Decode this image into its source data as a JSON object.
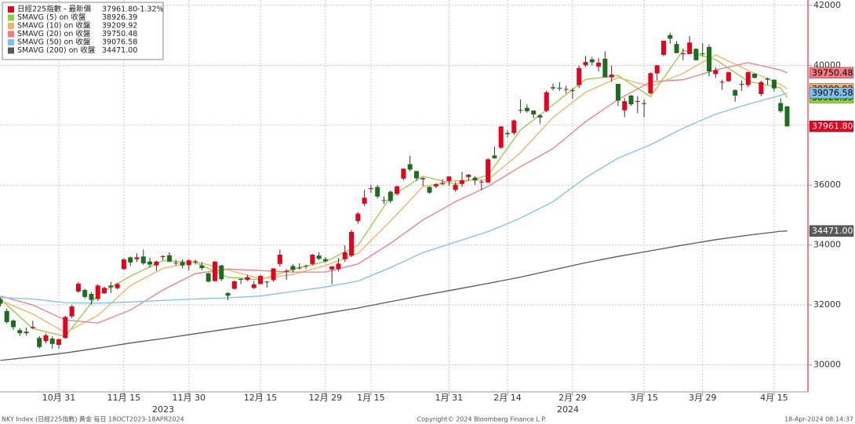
{
  "chart_data": {
    "type": "candlestick",
    "ylim": [
      29100,
      42180
    ],
    "yticks": [
      30000,
      32000,
      34000,
      36000,
      38000,
      40000,
      42000
    ],
    "xticks": [
      {
        "value": "2023-10-31",
        "label": "10月 31"
      },
      {
        "value": "2023-11-15",
        "label": "11月 15"
      },
      {
        "value": "2023-11-30",
        "label": "11月 30"
      },
      {
        "value": "2023-12-15",
        "label": "12月 15"
      },
      {
        "value": "2023-12-29",
        "label": "12月 29"
      },
      {
        "value": "2024-01-15",
        "label": "1月 15"
      },
      {
        "value": "2024-01-31",
        "label": "1月 31"
      },
      {
        "value": "2024-02-14",
        "label": "2月 14"
      },
      {
        "value": "2024-02-29",
        "label": "2月 29"
      },
      {
        "value": "2024-03-15",
        "label": "3月 15"
      },
      {
        "value": "2024-03-29",
        "label": "3月 29"
      },
      {
        "value": "2024-04-15",
        "label": "4月 15"
      }
    ],
    "years": [
      "2023",
      "2024"
    ],
    "grid": true,
    "footer_left": "NKY Index (日經225指數) 黃金  每日 18OCT2023-18APR2024",
    "footer_center": "Copyright© 2024 Bloomberg Finance L.P.",
    "footer_right": "18-Apr-2024 08:14:37",
    "candles": {
      "name": "日經225指數 - 最新價",
      "label": "37961.80",
      "change": "-1.32%",
      "color": "#e8001c",
      "up_color": "#e8001c",
      "down_color": "#1b6e1b",
      "x": [
        "2023-10-18",
        "2023-10-19",
        "2023-10-20",
        "2023-10-23",
        "2023-10-24",
        "2023-10-25",
        "2023-10-26",
        "2023-10-27",
        "2023-10-30",
        "2023-10-31",
        "2023-11-01",
        "2023-11-02",
        "2023-11-06",
        "2023-11-07",
        "2023-11-08",
        "2023-11-09",
        "2023-11-10",
        "2023-11-13",
        "2023-11-14",
        "2023-11-15",
        "2023-11-16",
        "2023-11-17",
        "2023-11-20",
        "2023-11-21",
        "2023-11-22",
        "2023-11-24",
        "2023-11-27",
        "2023-11-28",
        "2023-11-29",
        "2023-11-30",
        "2023-12-01",
        "2023-12-04",
        "2023-12-05",
        "2023-12-06",
        "2023-12-07",
        "2023-12-08",
        "2023-12-11",
        "2023-12-12",
        "2023-12-13",
        "2023-12-14",
        "2023-12-15",
        "2023-12-18",
        "2023-12-19",
        "2023-12-20",
        "2023-12-21",
        "2023-12-22",
        "2023-12-25",
        "2023-12-26",
        "2023-12-27",
        "2023-12-28",
        "2023-12-29",
        "2024-01-04",
        "2024-01-05",
        "2024-01-09",
        "2024-01-10",
        "2024-01-11",
        "2024-01-12",
        "2024-01-15",
        "2024-01-16",
        "2024-01-17",
        "2024-01-18",
        "2024-01-19",
        "2024-01-22",
        "2024-01-23",
        "2024-01-24",
        "2024-01-25",
        "2024-01-26",
        "2024-01-29",
        "2024-01-30",
        "2024-01-31",
        "2024-02-01",
        "2024-02-02",
        "2024-02-05",
        "2024-02-06",
        "2024-02-07",
        "2024-02-08",
        "2024-02-09",
        "2024-02-13",
        "2024-02-14",
        "2024-02-15",
        "2024-02-16",
        "2024-02-19",
        "2024-02-20",
        "2024-02-21",
        "2024-02-22",
        "2024-02-26",
        "2024-02-27",
        "2024-02-28",
        "2024-02-29",
        "2024-03-01",
        "2024-03-04",
        "2024-03-05",
        "2024-03-06",
        "2024-03-07",
        "2024-03-08",
        "2024-03-11",
        "2024-03-12",
        "2024-03-13",
        "2024-03-14",
        "2024-03-15",
        "2024-03-18",
        "2024-03-19",
        "2024-03-21",
        "2024-03-22",
        "2024-03-25",
        "2024-03-26",
        "2024-03-27",
        "2024-03-28",
        "2024-03-29",
        "2024-04-01",
        "2024-04-02",
        "2024-04-03",
        "2024-04-04",
        "2024-04-05",
        "2024-04-08",
        "2024-04-09",
        "2024-04-10",
        "2024-04-11",
        "2024-04-12",
        "2024-04-15",
        "2024-04-16",
        "2024-04-17"
      ],
      "open": [
        32200,
        31800,
        31480,
        31160,
        31110,
        31230,
        30900,
        30800,
        30880,
        30670,
        30900,
        31620,
        32450,
        32500,
        32370,
        32200,
        32390,
        32650,
        32560,
        33200,
        33590,
        33530,
        33620,
        33450,
        33320,
        33600,
        33660,
        33400,
        33430,
        33330,
        33460,
        33320,
        33060,
        32800,
        33320,
        32400,
        32540,
        32870,
        32840,
        32570,
        32700,
        32780,
        32830,
        33370,
        33110,
        33300,
        33230,
        33290,
        33370,
        33650,
        33530,
        33190,
        33200,
        33530,
        33650,
        34800,
        35380,
        35900,
        35940,
        35500,
        35780,
        35710,
        36220,
        36700,
        36470,
        36200,
        35940,
        35960,
        36040,
        36140,
        35840,
        36040,
        36270,
        36250,
        36100,
        36090,
        36990,
        37250,
        37740,
        37740,
        38510,
        38580,
        38490,
        38330,
        38480,
        39270,
        39250,
        39190,
        39140,
        39340,
        40010,
        40200,
        39960,
        40220,
        39600,
        39380,
        38500,
        38990,
        38780,
        38740,
        39070,
        39730,
        40350,
        41010,
        40710,
        40390,
        40380,
        40550,
        40400,
        40610,
        39710,
        39430,
        39470,
        39170,
        39380,
        39340,
        39720,
        39040,
        39560,
        39520,
        38740,
        38630
      ],
      "high": [
        32260,
        31880,
        31520,
        31230,
        31250,
        31470,
        30960,
        31050,
        30960,
        30880,
        31640,
        32010,
        32770,
        32540,
        32430,
        32690,
        32620,
        32770,
        32740,
        33560,
        33620,
        33720,
        33850,
        33580,
        33480,
        33660,
        33760,
        33510,
        33520,
        33530,
        33520,
        33430,
        33070,
        33460,
        33340,
        32420,
        32820,
        32900,
        33000,
        32800,
        33010,
        32800,
        33230,
        33850,
        33200,
        33370,
        33390,
        33350,
        33700,
        33760,
        33600,
        33290,
        33570,
        33990,
        34510,
        35100,
        35840,
        36010,
        36010,
        35620,
        35820,
        35990,
        36560,
        36980,
        36470,
        36260,
        35960,
        36060,
        36200,
        36300,
        36120,
        36440,
        36370,
        36300,
        36180,
        36900,
        37290,
        37970,
        37830,
        38190,
        38860,
        38700,
        38490,
        38370,
        39160,
        39390,
        39430,
        39320,
        39240,
        39990,
        40310,
        40280,
        40240,
        40470,
        39990,
        39380,
        38910,
        39010,
        38980,
        38860,
        39760,
        40010,
        40820,
        41090,
        40810,
        40560,
        40980,
        40560,
        40740,
        40700,
        39940,
        39520,
        39780,
        39200,
        39490,
        39790,
        39730,
        39490,
        39600,
        39520,
        38900,
        38640
      ],
      "low": [
        31950,
        31380,
        31160,
        30970,
        30980,
        31200,
        30550,
        30720,
        30540,
        30540,
        30880,
        31560,
        32400,
        32220,
        32010,
        32140,
        32370,
        32400,
        32520,
        33180,
        33300,
        33440,
        33340,
        33250,
        33140,
        33490,
        33420,
        33320,
        33230,
        33150,
        33350,
        33160,
        32750,
        32780,
        32800,
        32160,
        32520,
        32700,
        32800,
        32530,
        32690,
        32580,
        32780,
        33280,
        32840,
        33090,
        33170,
        33200,
        33320,
        33500,
        33420,
        32690,
        33120,
        33440,
        33600,
        34710,
        35300,
        35740,
        35550,
        35380,
        35400,
        35650,
        36160,
        36460,
        36150,
        35970,
        35710,
        35900,
        35990,
        35980,
        35780,
        35940,
        36150,
        36010,
        35830,
        36090,
        36880,
        37210,
        37590,
        37670,
        38400,
        38420,
        38240,
        38050,
        38430,
        39160,
        39150,
        39060,
        38880,
        39240,
        39950,
        40000,
        39800,
        39600,
        39450,
        38640,
        38270,
        38650,
        38400,
        38270,
        39030,
        39500,
        40300,
        40720,
        40400,
        40170,
        40370,
        40170,
        40300,
        39630,
        39580,
        39180,
        39450,
        38790,
        39150,
        39270,
        39560,
        38970,
        39350,
        39130,
        38420,
        37960
      ],
      "close": [
        32040,
        31430,
        31260,
        31060,
        31060,
        31270,
        30600,
        30990,
        30700,
        30860,
        31600,
        31950,
        32710,
        32270,
        32170,
        32650,
        32570,
        32590,
        32700,
        33520,
        33420,
        33590,
        33390,
        33350,
        33450,
        33630,
        33450,
        33410,
        33320,
        33490,
        33430,
        33230,
        32780,
        33450,
        32860,
        32310,
        32790,
        32840,
        32930,
        32690,
        32970,
        32760,
        33220,
        33680,
        33140,
        33170,
        33250,
        33310,
        33680,
        33540,
        33460,
        33290,
        33380,
        33760,
        34440,
        35050,
        35580,
        35900,
        35620,
        35480,
        35470,
        35960,
        36550,
        36520,
        36230,
        36240,
        35750,
        36030,
        36070,
        36290,
        36010,
        36160,
        36350,
        36160,
        36120,
        36860,
        36900,
        37960,
        37700,
        38160,
        38490,
        38470,
        38360,
        38260,
        39100,
        39230,
        39240,
        39210,
        39170,
        39910,
        40110,
        40100,
        40090,
        39600,
        39690,
        38820,
        38800,
        38700,
        38810,
        38710,
        39740,
        40000,
        40820,
        40890,
        40410,
        40400,
        40760,
        40170,
        40370,
        39800,
        39840,
        39450,
        39770,
        38990,
        39350,
        39770,
        39580,
        39440,
        39520,
        39230,
        38470,
        37961.8
      ]
    },
    "ma_x": [
      "2023-10-18",
      "2023-10-25",
      "2023-11-01",
      "2023-11-09",
      "2023-11-16",
      "2023-11-24",
      "2023-12-01",
      "2023-12-08",
      "2023-12-15",
      "2023-12-22",
      "2023-12-29",
      "2024-01-11",
      "2024-01-18",
      "2024-01-25",
      "2024-02-01",
      "2024-02-08",
      "2024-02-16",
      "2024-02-26",
      "2024-03-04",
      "2024-03-11",
      "2024-03-18",
      "2024-03-26",
      "2024-04-02",
      "2024-04-09",
      "2024-04-16",
      "2024-04-17"
    ],
    "series": [
      {
        "name": "SMAVG (5)  on 收盤",
        "label": "38926.39",
        "color": "#8dd03c",
        "values": [
          32200,
          31216,
          30950,
          32350,
          32960,
          33480,
          33420,
          32926,
          32844,
          33194,
          33448,
          33984,
          35610,
          36300,
          36030,
          36330,
          37842,
          38684,
          39528,
          39660,
          38952,
          40504,
          40188,
          39466,
          39248,
          38926.39
        ]
      },
      {
        "name": "SMAVG (10)  on 收盤",
        "label": "39209.92",
        "color": "#f6b063",
        "values": [
          32150,
          31700,
          31080,
          31650,
          32650,
          33220,
          33450,
          33170,
          32880,
          33020,
          33320,
          33720,
          34800,
          35950,
          36150,
          36180,
          37090,
          38260,
          39100,
          39590,
          39300,
          39730,
          40350,
          39830,
          39360,
          39209.92
        ]
      },
      {
        "name": "SMAVG (20)  on 收盤",
        "label": "39750.48",
        "color": "#f27b83",
        "values": [
          32300,
          32000,
          31500,
          31400,
          31830,
          32500,
          33050,
          33200,
          33150,
          33100,
          33100,
          33370,
          34060,
          34840,
          35450,
          35960,
          36620,
          37220,
          38120,
          38860,
          39450,
          39520,
          39840,
          40090,
          39840,
          39750.48
        ]
      },
      {
        "name": "SMAVG (50)  on 收盤",
        "label": "39076.58",
        "color": "#7cc1ee",
        "values": [
          32250,
          32200,
          32080,
          32060,
          32100,
          32150,
          32200,
          32240,
          32300,
          32450,
          32600,
          32800,
          33250,
          33750,
          34100,
          34450,
          34900,
          35450,
          36250,
          36900,
          37350,
          37900,
          38370,
          38700,
          39000,
          39076.58
        ]
      },
      {
        "name": "SMAVG (200)  on 收盤",
        "label": "34471.00",
        "color": "#595959",
        "values": [
          30150,
          30270,
          30400,
          30560,
          30730,
          30880,
          31040,
          31200,
          31360,
          31530,
          31720,
          31900,
          32110,
          32320,
          32520,
          32720,
          32930,
          33170,
          33410,
          33620,
          33810,
          34000,
          34180,
          34330,
          34460,
          34471
        ]
      }
    ]
  }
}
